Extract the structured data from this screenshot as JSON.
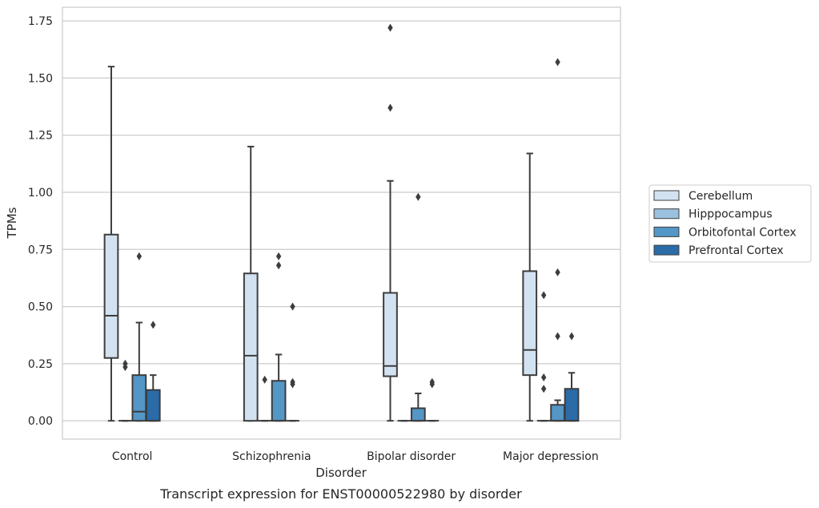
{
  "caption": "Transcript expression for ENST00000522980 by disorder",
  "chart_data": {
    "type": "box",
    "xlabel": "Disorder",
    "ylabel": "TPMs",
    "ylim": [
      -0.08,
      1.81
    ],
    "yticks": [
      "0.00",
      "0.25",
      "0.50",
      "0.75",
      "1.00",
      "1.25",
      "1.50",
      "1.75"
    ],
    "grid": "horizontal",
    "legend_position": "outside-right",
    "categories": [
      "Control",
      "Schizophrenia",
      "Bipolar disorder",
      "Major depression"
    ],
    "series": [
      {
        "name": "Cerebellum",
        "color": "#d3e2f1",
        "boxes": [
          {
            "whislo": 0.0,
            "q1": 0.275,
            "med": 0.46,
            "q3": 0.815,
            "whishi": 1.55,
            "fliers": []
          },
          {
            "whislo": 0.0,
            "q1": 0.0,
            "med": 0.285,
            "q3": 0.645,
            "whishi": 1.2,
            "fliers": []
          },
          {
            "whislo": 0.0,
            "q1": 0.195,
            "med": 0.24,
            "q3": 0.56,
            "whishi": 1.05,
            "fliers": [
              1.37,
              1.72
            ]
          },
          {
            "whislo": 0.0,
            "q1": 0.2,
            "med": 0.31,
            "q3": 0.655,
            "whishi": 1.17,
            "fliers": []
          }
        ]
      },
      {
        "name": "Hipppocampus",
        "color": "#9ac1dd",
        "boxes": [
          {
            "whislo": 0.0,
            "q1": 0.0,
            "med": 0.0,
            "q3": 0.0,
            "whishi": 0.0,
            "fliers": [
              0.235,
              0.25
            ]
          },
          {
            "whislo": 0.0,
            "q1": 0.0,
            "med": 0.0,
            "q3": 0.0,
            "whishi": 0.0,
            "fliers": [
              0.18
            ]
          },
          {
            "whislo": 0.0,
            "q1": 0.0,
            "med": 0.0,
            "q3": 0.0,
            "whishi": 0.0,
            "fliers": []
          },
          {
            "whislo": 0.0,
            "q1": 0.0,
            "med": 0.0,
            "q3": 0.0,
            "whishi": 0.0,
            "fliers": [
              0.14,
              0.19,
              0.55
            ]
          }
        ]
      },
      {
        "name": "Orbitofontal Cortex",
        "color": "#5496c6",
        "boxes": [
          {
            "whislo": 0.0,
            "q1": 0.0,
            "med": 0.04,
            "q3": 0.2,
            "whishi": 0.43,
            "fliers": [
              0.72
            ]
          },
          {
            "whislo": 0.0,
            "q1": 0.0,
            "med": 0.0,
            "q3": 0.175,
            "whishi": 0.29,
            "fliers": [
              0.68,
              0.72
            ]
          },
          {
            "whislo": 0.0,
            "q1": 0.0,
            "med": 0.0,
            "q3": 0.055,
            "whishi": 0.12,
            "fliers": [
              0.98
            ]
          },
          {
            "whislo": 0.0,
            "q1": 0.0,
            "med": 0.0,
            "q3": 0.07,
            "whishi": 0.09,
            "fliers": [
              0.37,
              0.65,
              1.57
            ]
          }
        ]
      },
      {
        "name": "Prefrontal Cortex",
        "color": "#2a6ba8",
        "boxes": [
          {
            "whislo": 0.0,
            "q1": 0.0,
            "med": 0.0,
            "q3": 0.135,
            "whishi": 0.2,
            "fliers": [
              0.42
            ]
          },
          {
            "whislo": 0.0,
            "q1": 0.0,
            "med": 0.0,
            "q3": 0.0,
            "whishi": 0.0,
            "fliers": [
              0.16,
              0.17,
              0.5
            ]
          },
          {
            "whislo": 0.0,
            "q1": 0.0,
            "med": 0.0,
            "q3": 0.0,
            "whishi": 0.0,
            "fliers": [
              0.16,
              0.17
            ]
          },
          {
            "whislo": 0.0,
            "q1": 0.0,
            "med": 0.0,
            "q3": 0.14,
            "whishi": 0.21,
            "fliers": [
              0.37
            ]
          }
        ]
      }
    ]
  }
}
